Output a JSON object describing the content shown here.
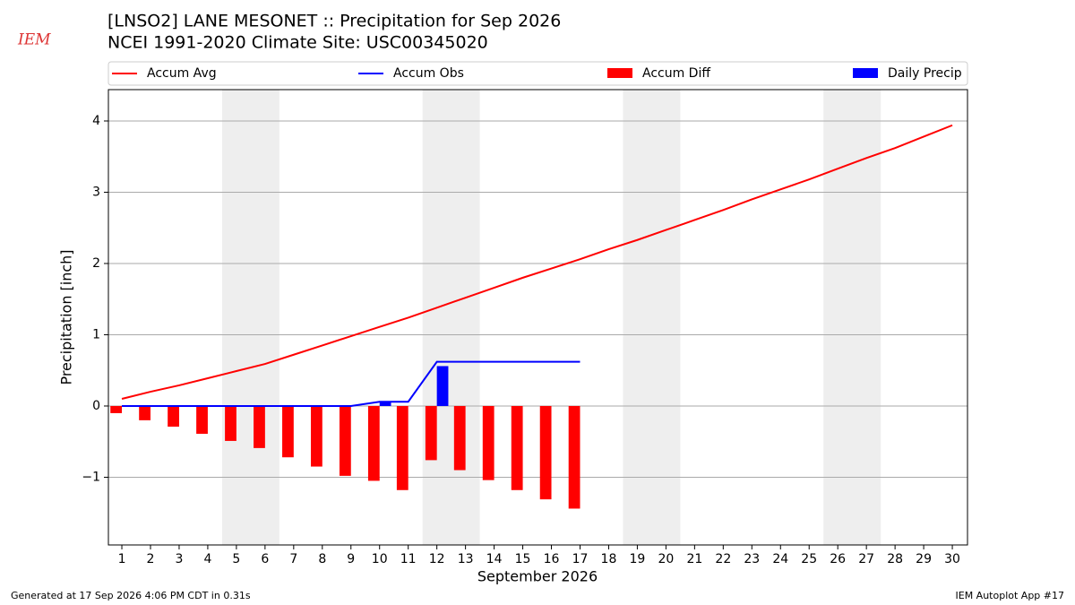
{
  "logo": "IEM",
  "footer_left": "Generated at 17 Sep 2026 4:06 PM CDT in 0.31s",
  "footer_right": "IEM Autoplot App #17",
  "chart_data": {
    "type": "combo",
    "title": "[LNSO2] LANE MESONET :: Precipitation for Sep 2026",
    "subtitle": "NCEI 1991-2020 Climate Site: USC00345020",
    "x_label": "September 2026",
    "y_label": "Precipitation [inch]",
    "x": [
      1,
      2,
      3,
      4,
      5,
      6,
      7,
      8,
      9,
      10,
      11,
      12,
      13,
      14,
      15,
      16,
      17,
      18,
      19,
      20,
      21,
      22,
      23,
      24,
      25,
      26,
      27,
      28,
      29,
      30
    ],
    "series": [
      {
        "name": "Accum Avg",
        "type": "line",
        "color": "#ff0000",
        "values": [
          0.1,
          0.2,
          0.29,
          0.39,
          0.49,
          0.59,
          0.72,
          0.85,
          0.98,
          1.11,
          1.24,
          1.38,
          1.52,
          1.66,
          1.8,
          1.93,
          2.06,
          2.2,
          2.33,
          2.47,
          2.61,
          2.75,
          2.9,
          3.04,
          3.18,
          3.33,
          3.48,
          3.62,
          3.78,
          3.94
        ]
      },
      {
        "name": "Accum Obs",
        "type": "line",
        "color": "#0000ff",
        "values": [
          0,
          0,
          0,
          0,
          0,
          0,
          0,
          0,
          0,
          0.06,
          0.06,
          0.62,
          0.62,
          0.62,
          0.62,
          0.62,
          0.62,
          null,
          null,
          null,
          null,
          null,
          null,
          null,
          null,
          null,
          null,
          null,
          null,
          null
        ]
      },
      {
        "name": "Accum Diff",
        "type": "bar",
        "offset": "left",
        "color": "#ff0000",
        "values": [
          -0.1,
          -0.2,
          -0.29,
          -0.39,
          -0.49,
          -0.59,
          -0.72,
          -0.85,
          -0.98,
          -1.05,
          -1.18,
          -0.76,
          -0.9,
          -1.04,
          -1.18,
          -1.31,
          -1.44,
          null,
          null,
          null,
          null,
          null,
          null,
          null,
          null,
          null,
          null,
          null,
          null,
          null
        ]
      },
      {
        "name": "Daily Precip",
        "type": "bar",
        "offset": "right",
        "color": "#0000ff",
        "values": [
          0,
          0,
          0,
          0,
          0,
          0,
          0,
          0,
          0,
          0.06,
          0,
          0.56,
          0,
          0,
          0,
          0,
          0,
          null,
          null,
          null,
          null,
          null,
          null,
          null,
          null,
          null,
          null,
          null,
          null,
          null
        ]
      }
    ],
    "shaded_x": [
      [
        4.5,
        6.5
      ],
      [
        11.5,
        13.5
      ],
      [
        18.5,
        20.5
      ],
      [
        25.5,
        27.5
      ]
    ],
    "xlim": [
      0.53,
      30.53
    ],
    "xticks": [
      1,
      2,
      3,
      4,
      5,
      6,
      7,
      8,
      9,
      10,
      11,
      12,
      13,
      14,
      15,
      16,
      17,
      18,
      19,
      20,
      21,
      22,
      23,
      24,
      25,
      26,
      27,
      28,
      29,
      30
    ],
    "ylim": [
      -1.95,
      4.44
    ],
    "yticks": [
      {
        "value": -1,
        "label": "−1"
      },
      0,
      1,
      2,
      3,
      4
    ],
    "grid": true
  }
}
